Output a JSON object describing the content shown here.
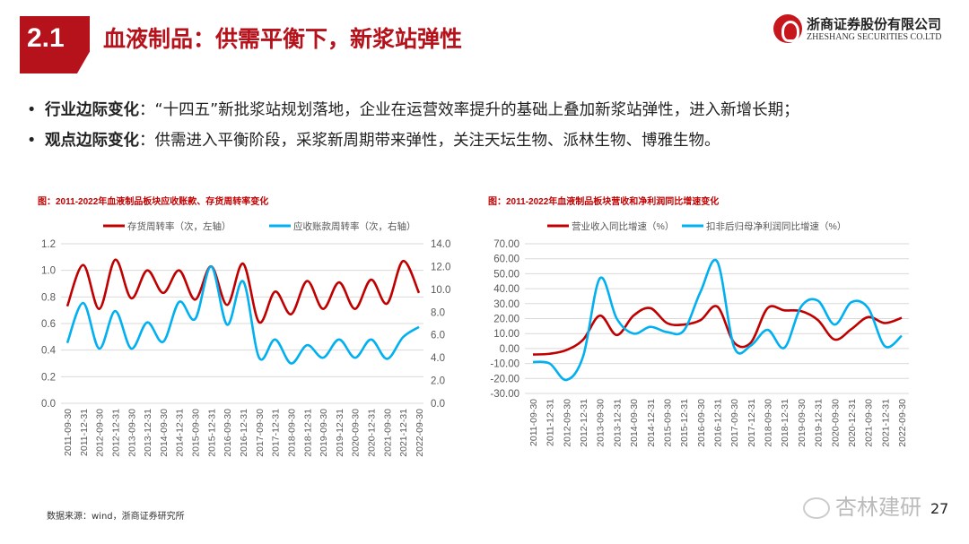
{
  "header": {
    "section": "2.1",
    "title": "血液制品：供需平衡下，新浆站弹性",
    "logo_cn": "浙商证券股份有限公司",
    "logo_en": "ZHESHANG SECURITIES CO.LTD"
  },
  "bullets": [
    {
      "label": "行业边际变化",
      "text": "：“十四五”新批浆站规划落地，企业在运营效率提升的基础上叠加新浆站弹性，进入新增长期；"
    },
    {
      "label": "观点边际变化",
      "text": "：供需进入平衡阶段，采浆新周期带来弹性，关注天坛生物、派林生物、博雅生物。"
    }
  ],
  "footer": {
    "source": "数据来源：wind，浙商证券研究所",
    "watermark": "杏林建研",
    "page": "27"
  },
  "chart_data": [
    {
      "type": "line",
      "title": "图：2011-2022年血液制品板块应收账款、存货周转率变化",
      "categories": [
        "2011-09-30",
        "2011-12-31",
        "2012-09-30",
        "2012-12-31",
        "2013-09-30",
        "2013-12-31",
        "2014-09-30",
        "2014-12-31",
        "2015-09-30",
        "2015-12-31",
        "2016-09-30",
        "2016-12-31",
        "2017-09-30",
        "2017-12-31",
        "2018-09-30",
        "2018-12-31",
        "2019-09-30",
        "2019-12-31",
        "2020-09-30",
        "2020-12-31",
        "2021-09-30",
        "2021-12-31",
        "2022-09-30"
      ],
      "y_left": {
        "ticks": [
          "0.0",
          "0.2",
          "0.4",
          "0.6",
          "0.8",
          "1.0",
          "1.2"
        ],
        "range": [
          0,
          1.2
        ]
      },
      "y_right": {
        "ticks": [
          "0.0",
          "2.0",
          "4.0",
          "6.0",
          "8.0",
          "10.0",
          "12.0",
          "14.0"
        ],
        "range": [
          0,
          14
        ]
      },
      "series": [
        {
          "name": "存货周转率（次，左轴）",
          "axis": "left",
          "color": "#c00000",
          "values": [
            0.73,
            1.04,
            0.71,
            1.08,
            0.79,
            1.0,
            0.83,
            1.0,
            0.78,
            1.03,
            0.74,
            1.05,
            0.61,
            0.84,
            0.67,
            0.92,
            0.71,
            0.91,
            0.71,
            0.93,
            0.75,
            1.07,
            0.83
          ]
        },
        {
          "name": "应收账款周转率（次，右轴）",
          "axis": "right",
          "color": "#00b0f0",
          "values": [
            5.3,
            8.8,
            4.8,
            8.1,
            4.8,
            7.1,
            5.4,
            8.9,
            7.4,
            12.0,
            6.9,
            10.7,
            4.0,
            5.6,
            3.5,
            5.1,
            4.0,
            5.6,
            4.0,
            5.6,
            3.9,
            5.8,
            6.7
          ]
        }
      ],
      "legend": "top",
      "grid": true
    },
    {
      "type": "line",
      "title": "图：2011-2022年血液制品板块营收和净利润同比增速变化",
      "categories": [
        "2011-09-30",
        "2011-12-31",
        "2012-09-30",
        "2012-12-31",
        "2013-09-30",
        "2013-12-31",
        "2014-09-30",
        "2014-12-31",
        "2015-09-30",
        "2015-12-31",
        "2016-09-30",
        "2016-12-31",
        "2017-09-30",
        "2017-12-31",
        "2018-09-30",
        "2018-12-31",
        "2019-09-30",
        "2019-12-31",
        "2020-09-30",
        "2020-12-31",
        "2021-09-30",
        "2021-12-31",
        "2022-09-30"
      ],
      "y_left": {
        "ticks": [
          "-30.00",
          "-20.00",
          "-10.00",
          "0.00",
          "10.00",
          "20.00",
          "30.00",
          "40.00",
          "50.00",
          "60.00",
          "70.00"
        ],
        "range": [
          -30,
          70
        ]
      },
      "series": [
        {
          "name": "营业收入同比增速（%）",
          "axis": "left",
          "color": "#c00000",
          "values": [
            -4,
            -3.5,
            -1,
            6,
            22,
            9,
            22,
            27,
            17,
            16,
            19,
            28,
            4,
            4,
            27,
            25.5,
            25,
            19,
            6,
            13,
            21,
            17,
            20.5
          ]
        },
        {
          "name": "扣非后归母净利润同比增速（%）",
          "axis": "left",
          "color": "#00b0f0",
          "values": [
            -9,
            -10,
            -21,
            -5,
            47,
            20,
            10,
            14.5,
            11,
            12,
            38,
            58,
            1,
            2,
            12.5,
            0.5,
            28,
            32,
            16,
            31,
            27,
            1.5,
            8.5
          ]
        }
      ],
      "legend": "top",
      "grid": true
    }
  ]
}
